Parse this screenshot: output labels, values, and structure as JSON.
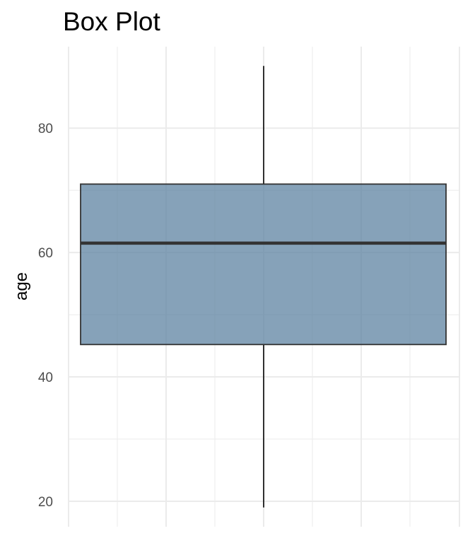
{
  "chart_data": {
    "type": "box",
    "title": "Box Plot",
    "xlabel": "",
    "ylabel": "age",
    "ylim": [
      15.9,
      93.1
    ],
    "y_ticks": [
      20,
      40,
      60,
      80
    ],
    "y_tick_labels": [
      "20",
      "40",
      "60",
      "80"
    ],
    "grid": true,
    "box": {
      "min": 19,
      "q1": 45.2,
      "median": 61.5,
      "q3": 71,
      "max": 90
    },
    "colors": {
      "box_fill": "#5e83a2",
      "box_stroke": "#333333",
      "grid": "#ebebeb",
      "tick_label": "#4d4d4d"
    }
  }
}
